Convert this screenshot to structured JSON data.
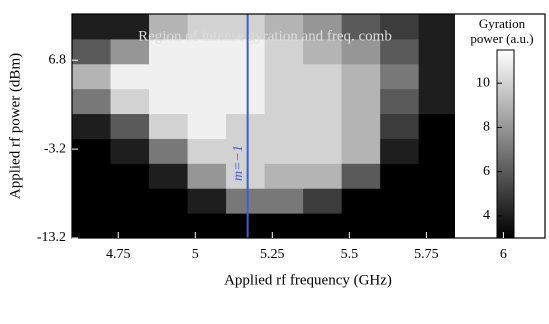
{
  "chart_data": {
    "type": "heatmap",
    "xlabel": "Applied rf frequency (GHz)",
    "ylabel": "Applied rf power (dBm)",
    "annotation": "Region of intense gyration and freq. comb",
    "xlim": [
      4.6,
      6.135
    ],
    "ylim": [
      -13.2,
      12
    ],
    "xticks": [
      4.75,
      5,
      5.25,
      5.5,
      5.75,
      6
    ],
    "yticks": [
      6.8,
      -3.2,
      -13.2
    ],
    "xbins": [
      4.6,
      4.725,
      4.85,
      4.975,
      5.1,
      5.225,
      5.35,
      5.475,
      5.6,
      5.725,
      5.85
    ],
    "ybins": [
      -13.2,
      -10.4,
      -7.6,
      -4.8,
      -2,
      0.8,
      3.6,
      6.4,
      9.2,
      12
    ],
    "z": [
      [
        3,
        3,
        3,
        3,
        3,
        3,
        3,
        3,
        3,
        3
      ],
      [
        3,
        3,
        3,
        4,
        7,
        7,
        5,
        3,
        3,
        3
      ],
      [
        3,
        3,
        4,
        8,
        10,
        9,
        9,
        6,
        3,
        3
      ],
      [
        3,
        4,
        7,
        10,
        10,
        10,
        10,
        9,
        4,
        3
      ],
      [
        4,
        6,
        10,
        11,
        10,
        10,
        10,
        9,
        5,
        3
      ],
      [
        7,
        10,
        11,
        11,
        11,
        10,
        10,
        9,
        6,
        4
      ],
      [
        9,
        11,
        11,
        11,
        11,
        10,
        10,
        9,
        7,
        4
      ],
      [
        6,
        8,
        11,
        11,
        11,
        10,
        9,
        8,
        6,
        4
      ],
      [
        4,
        4,
        9,
        10,
        10,
        9,
        8,
        6,
        5,
        4
      ]
    ],
    "marker": {
      "x": 5.17,
      "label": "m=−1",
      "color": "#3a5fd0"
    },
    "colorbar": {
      "label": "Gyration power (a.u.)",
      "lim": [
        3,
        11.5
      ],
      "ticks": [
        4,
        6,
        8,
        10
      ]
    }
  }
}
